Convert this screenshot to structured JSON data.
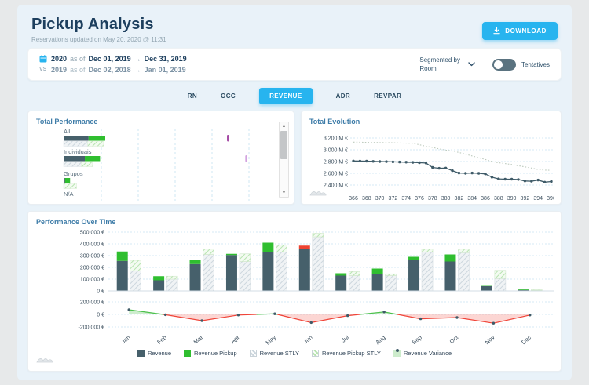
{
  "header": {
    "title": "Pickup Analysis",
    "subtitle": "Reservations updated on May 20, 2020 @ 11:31",
    "download_label": "DOWNLOAD"
  },
  "filters": {
    "period1": {
      "year": "2020",
      "as_of": "as of",
      "start": "Dec 01, 2019",
      "arrow": "→",
      "end": "Dec 31, 2019"
    },
    "period2": {
      "vs": "VS",
      "year": "2019",
      "as_of": "as of",
      "start": "Dec 02, 2018",
      "arrow": "→",
      "end": "Jan 01, 2019"
    },
    "segmented_by": {
      "label": "Segmented by",
      "value": "Room"
    },
    "tentatives_label": "Tentatives"
  },
  "tabs": {
    "items": [
      "RN",
      "OCC",
      "REVENUE",
      "ADR",
      "REVPAR"
    ],
    "active": "REVENUE"
  },
  "icons": {
    "download_icon": "⭳",
    "calendar_icon": "▦",
    "chevron_down_icon": "⌄",
    "scroll_up": "▲",
    "scroll_down": "▼",
    "area_chart_icon": "∿"
  },
  "colors": {
    "accent": "#27b4ef",
    "navy": "#1d3f5e",
    "panel_title": "#3e7ca8",
    "bar_dark": "#46606b",
    "green": "#2fbe2f",
    "red": "#ee4331",
    "hatch_gray": "#ccd6dd",
    "hatch_green": "#b7e3b0",
    "grid": "#d6e9f5",
    "axis_text": "#3c4f5e",
    "line_dark": "#3f5b68",
    "line_stly": "#bcc9bc",
    "variance_pos": "#4cc04c",
    "variance_neg": "#f04438",
    "marker_purple_1": "#a64ca6",
    "marker_purple_2": "#d2a3e0"
  },
  "chart_data": [
    {
      "id": "total_performance",
      "type": "bar",
      "orientation": "horizontal",
      "title": "Total Performance",
      "categories": [
        "All",
        "Individuais",
        "Grupos",
        "N/A"
      ],
      "units": "percent-of-axis-width",
      "series": [
        {
          "name": "Revenue",
          "values": [
            12.0,
            10.2,
            0.7,
            0
          ]
        },
        {
          "name": "Revenue Pickup",
          "values": [
            8.0,
            7.3,
            2.4,
            0
          ]
        },
        {
          "name": "Revenue STLY",
          "values": [
            11.6,
            8.4,
            0.3,
            0
          ]
        },
        {
          "name": "Revenue Pickup STLY",
          "values": [
            7.6,
            5.5,
            6.0,
            0
          ]
        }
      ],
      "variance_markers": [
        {
          "category": "All",
          "pos_pct": 78.5,
          "color": "#a64ca6"
        },
        {
          "category": "Individuais",
          "pos_pct": 87.3,
          "color": "#d2a3e0"
        }
      ],
      "grid": "vertical-dashed"
    },
    {
      "id": "total_evolution",
      "type": "line",
      "title": "Total Evolution",
      "x": [
        366,
        367,
        368,
        369,
        370,
        371,
        372,
        373,
        374,
        375,
        376,
        377,
        378,
        379,
        380,
        381,
        382,
        383,
        384,
        385,
        386,
        387,
        388,
        389,
        390,
        391,
        392,
        393,
        394,
        395,
        396
      ],
      "series": [
        {
          "name": "Revenue",
          "style": "solid-markers",
          "values": [
            2810,
            2808,
            2806,
            2802,
            2800,
            2798,
            2795,
            2792,
            2790,
            2785,
            2780,
            2775,
            2700,
            2685,
            2690,
            2645,
            2605,
            2600,
            2605,
            2600,
            2590,
            2535,
            2505,
            2500,
            2500,
            2495,
            2470,
            2465,
            2485,
            2450,
            2460
          ]
        },
        {
          "name": "Revenue STLY",
          "style": "dotted",
          "values": [
            3130,
            3128,
            3126,
            3124,
            3122,
            3120,
            3118,
            3115,
            3112,
            3110,
            3085,
            3060,
            3040,
            3015,
            2995,
            2980,
            2955,
            2925,
            2895,
            2865,
            2835,
            2800,
            2780,
            2765,
            2750,
            2730,
            2710,
            2690,
            2665,
            2655,
            2652
          ]
        }
      ],
      "yticks": [
        3200,
        3000,
        2800,
        2600,
        2400
      ],
      "ytick_suffix": " M €",
      "ylim": [
        2400,
        3200
      ],
      "xtick_step": 2,
      "grid": "horizontal-dashed"
    },
    {
      "id": "performance_over_time",
      "type": "bar+line",
      "title": "Performance Over Time",
      "categories": [
        "Jan",
        "Feb",
        "Mar",
        "Apr",
        "May",
        "Jun",
        "Jul",
        "Aug",
        "Sep",
        "Oct",
        "Nov",
        "Dec"
      ],
      "series": [
        {
          "name": "Revenue",
          "values": [
            255000,
            90000,
            228000,
            305000,
            330000,
            360000,
            130000,
            140000,
            265000,
            250000,
            40000,
            8000
          ]
        },
        {
          "name": "Revenue Pickup",
          "values": [
            80000,
            35000,
            32000,
            10000,
            80000,
            -25000,
            20000,
            50000,
            25000,
            60000,
            3000,
            5000
          ]
        },
        {
          "name": "Revenue STLY",
          "values": [
            170000,
            100000,
            310000,
            250000,
            330000,
            460000,
            130000,
            130000,
            330000,
            325000,
            105000,
            5000
          ]
        },
        {
          "name": "Revenue Pickup STLY",
          "values": [
            90000,
            25000,
            45000,
            65000,
            60000,
            30000,
            35000,
            15000,
            25000,
            30000,
            70000,
            5000
          ]
        },
        {
          "name": "Revenue Variance",
          "values": [
            75000,
            -5000,
            -100000,
            -10000,
            10000,
            -130000,
            -20000,
            40000,
            -70000,
            -50000,
            -140000,
            -10000
          ]
        }
      ],
      "yticks_main": [
        500000,
        400000,
        300000,
        200000,
        100000,
        0
      ],
      "yticks_variance": [
        200000,
        0,
        -200000
      ],
      "ytick_suffix": " €",
      "legend": [
        "Revenue",
        "Revenue Pickup",
        "Revenue STLY",
        "Revenue Pickup STLY",
        "Revenue Variance"
      ],
      "legend_position": "bottom"
    }
  ]
}
